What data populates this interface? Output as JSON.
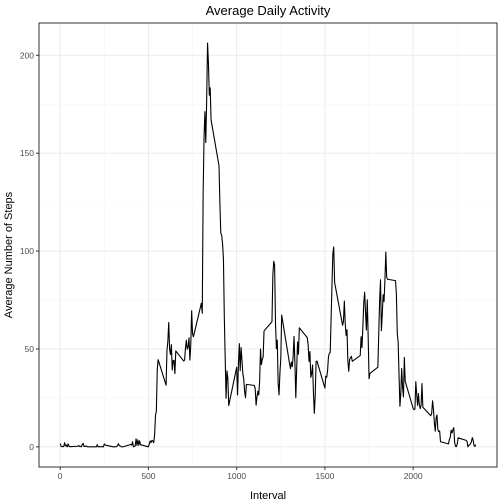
{
  "chart_data": {
    "type": "line",
    "title": "Average Daily Activity",
    "xlabel": "Interval",
    "ylabel": "Average Number of Steps",
    "xlim": [
      -120,
      2475
    ],
    "ylim": [
      -10.3,
      216.5
    ],
    "x_ticks": [
      0,
      500,
      1000,
      1500,
      2000
    ],
    "y_ticks": [
      0,
      50,
      100,
      150,
      200
    ],
    "grid": true,
    "legend": "none",
    "colors": {
      "line": "#000000",
      "grid_major": "#ebebeb",
      "grid_minor": "#f5f5f5",
      "panel_border": "#333333",
      "tick_text": "#4d4d4d"
    },
    "series": [
      {
        "values": [
          [
            0,
            1.7
          ],
          [
            5,
            0.3
          ],
          [
            10,
            0.1
          ],
          [
            15,
            0.2
          ],
          [
            20,
            0.1
          ],
          [
            25,
            2.1
          ],
          [
            30,
            0.5
          ],
          [
            35,
            0.9
          ],
          [
            40,
            0
          ],
          [
            45,
            1.5
          ],
          [
            50,
            0.3
          ],
          [
            55,
            0.1
          ],
          [
            100,
            0.3
          ],
          [
            105,
            0.7
          ],
          [
            110,
            0.2
          ],
          [
            115,
            0.3
          ],
          [
            120,
            0
          ],
          [
            125,
            1.1
          ],
          [
            130,
            1.8
          ],
          [
            135,
            0.2
          ],
          [
            140,
            0.2
          ],
          [
            145,
            0.4
          ],
          [
            150,
            0.3
          ],
          [
            155,
            0
          ],
          [
            200,
            0
          ],
          [
            205,
            0
          ],
          [
            210,
            1.1
          ],
          [
            215,
            0
          ],
          [
            220,
            0
          ],
          [
            225,
            0.1
          ],
          [
            230,
            0
          ],
          [
            235,
            0.2
          ],
          [
            240,
            0
          ],
          [
            245,
            0
          ],
          [
            250,
            1.5
          ],
          [
            255,
            0.9
          ],
          [
            300,
            0
          ],
          [
            305,
            0
          ],
          [
            310,
            0
          ],
          [
            315,
            0
          ],
          [
            320,
            0.2
          ],
          [
            325,
            0.6
          ],
          [
            330,
            1.6
          ],
          [
            335,
            0.6
          ],
          [
            340,
            0.5
          ],
          [
            345,
            0.1
          ],
          [
            350,
            0
          ],
          [
            355,
            0
          ],
          [
            400,
            1.2
          ],
          [
            405,
            0.9
          ],
          [
            410,
            2.6
          ],
          [
            415,
            0
          ],
          [
            420,
            0.3
          ],
          [
            425,
            0.4
          ],
          [
            430,
            4.1
          ],
          [
            435,
            0.7
          ],
          [
            440,
            3.5
          ],
          [
            445,
            0.8
          ],
          [
            450,
            3.1
          ],
          [
            455,
            1.1
          ],
          [
            500,
            0
          ],
          [
            505,
            1.6
          ],
          [
            510,
            3.0
          ],
          [
            515,
            2.2
          ],
          [
            520,
            3.3
          ],
          [
            525,
            3.0
          ],
          [
            530,
            2.1
          ],
          [
            535,
            6.1
          ],
          [
            540,
            16.0
          ],
          [
            545,
            18.3
          ],
          [
            550,
            39.5
          ],
          [
            555,
            44.5
          ],
          [
            600,
            31.5
          ],
          [
            605,
            49.3
          ],
          [
            610,
            53.8
          ],
          [
            615,
            63.5
          ],
          [
            620,
            50.0
          ],
          [
            625,
            47.1
          ],
          [
            630,
            52.2
          ],
          [
            635,
            39.3
          ],
          [
            640,
            44.0
          ],
          [
            645,
            44.2
          ],
          [
            650,
            37.4
          ],
          [
            655,
            49.0
          ],
          [
            700,
            43.8
          ],
          [
            705,
            44.4
          ],
          [
            710,
            50.5
          ],
          [
            715,
            54.5
          ],
          [
            720,
            49.9
          ],
          [
            725,
            51.0
          ],
          [
            730,
            55.7
          ],
          [
            735,
            44.3
          ],
          [
            740,
            52.3
          ],
          [
            745,
            69.5
          ],
          [
            750,
            57.8
          ],
          [
            755,
            56.2
          ],
          [
            800,
            73.4
          ],
          [
            805,
            68.2
          ],
          [
            810,
            129.4
          ],
          [
            815,
            157.5
          ],
          [
            820,
            171.2
          ],
          [
            825,
            155.4
          ],
          [
            830,
            177.3
          ],
          [
            835,
            206.2
          ],
          [
            840,
            195.9
          ],
          [
            845,
            179.6
          ],
          [
            850,
            183.4
          ],
          [
            855,
            167.0
          ],
          [
            900,
            143.5
          ],
          [
            905,
            124.0
          ],
          [
            910,
            109.1
          ],
          [
            915,
            108.1
          ],
          [
            920,
            103.7
          ],
          [
            925,
            95.97
          ],
          [
            930,
            66.2
          ],
          [
            935,
            45.2
          ],
          [
            940,
            24.8
          ],
          [
            945,
            38.8
          ],
          [
            950,
            34.98
          ],
          [
            955,
            21.1
          ],
          [
            1000,
            40.6
          ],
          [
            1005,
            26.5
          ],
          [
            1010,
            42.4
          ],
          [
            1015,
            52.7
          ],
          [
            1020,
            38.9
          ],
          [
            1025,
            50.8
          ],
          [
            1030,
            44.3
          ],
          [
            1035,
            37.4
          ],
          [
            1040,
            34.7
          ],
          [
            1045,
            28.3
          ],
          [
            1050,
            25.1
          ],
          [
            1055,
            31.9
          ],
          [
            1100,
            31.4
          ],
          [
            1105,
            29.7
          ],
          [
            1110,
            21.3
          ],
          [
            1115,
            25.5
          ],
          [
            1120,
            28.4
          ],
          [
            1125,
            26.5
          ],
          [
            1130,
            33.4
          ],
          [
            1135,
            49.98
          ],
          [
            1140,
            42.0
          ],
          [
            1145,
            44.6
          ],
          [
            1150,
            46.0
          ],
          [
            1155,
            59.2
          ],
          [
            1200,
            63.9
          ],
          [
            1205,
            87.7
          ],
          [
            1210,
            94.8
          ],
          [
            1215,
            92.8
          ],
          [
            1220,
            63.4
          ],
          [
            1225,
            50.2
          ],
          [
            1230,
            54.5
          ],
          [
            1235,
            32.4
          ],
          [
            1240,
            26.5
          ],
          [
            1245,
            37.7
          ],
          [
            1250,
            45.1
          ],
          [
            1255,
            67.3
          ],
          [
            1300,
            42.3
          ],
          [
            1305,
            39.9
          ],
          [
            1310,
            43.3
          ],
          [
            1315,
            40.98
          ],
          [
            1320,
            46.2
          ],
          [
            1325,
            56.4
          ],
          [
            1330,
            42.8
          ],
          [
            1335,
            25.1
          ],
          [
            1340,
            39.96
          ],
          [
            1345,
            53.5
          ],
          [
            1350,
            47.3
          ],
          [
            1355,
            60.8
          ],
          [
            1400,
            55.8
          ],
          [
            1405,
            51.96
          ],
          [
            1410,
            43.6
          ],
          [
            1415,
            48.7
          ],
          [
            1420,
            35.5
          ],
          [
            1425,
            37.5
          ],
          [
            1430,
            41.8
          ],
          [
            1435,
            27.5
          ],
          [
            1440,
            17.1
          ],
          [
            1445,
            26.1
          ],
          [
            1450,
            43.6
          ],
          [
            1455,
            43.8
          ],
          [
            1500,
            30.0
          ],
          [
            1505,
            36.1
          ],
          [
            1510,
            35.5
          ],
          [
            1515,
            38.8
          ],
          [
            1520,
            45.96
          ],
          [
            1525,
            47.8
          ],
          [
            1530,
            48.1
          ],
          [
            1535,
            65.3
          ],
          [
            1540,
            82.9
          ],
          [
            1545,
            98.7
          ],
          [
            1550,
            102.1
          ],
          [
            1555,
            83.96
          ],
          [
            1600,
            62.1
          ],
          [
            1605,
            64.1
          ],
          [
            1610,
            74.5
          ],
          [
            1615,
            63.2
          ],
          [
            1620,
            56.9
          ],
          [
            1625,
            59.8
          ],
          [
            1630,
            43.9
          ],
          [
            1635,
            38.6
          ],
          [
            1640,
            44.7
          ],
          [
            1645,
            45.5
          ],
          [
            1650,
            46.2
          ],
          [
            1655,
            43.7
          ],
          [
            1700,
            46.6
          ],
          [
            1705,
            56.3
          ],
          [
            1710,
            50.7
          ],
          [
            1715,
            61.2
          ],
          [
            1720,
            73.4
          ],
          [
            1725,
            79.0
          ],
          [
            1730,
            68.9
          ],
          [
            1735,
            59.7
          ],
          [
            1740,
            75.1
          ],
          [
            1745,
            56.5
          ],
          [
            1750,
            34.8
          ],
          [
            1755,
            37.5
          ],
          [
            1800,
            40.7
          ],
          [
            1805,
            58.0
          ],
          [
            1810,
            74.7
          ],
          [
            1815,
            85.3
          ],
          [
            1820,
            59.3
          ],
          [
            1825,
            67.8
          ],
          [
            1830,
            77.7
          ],
          [
            1835,
            74.2
          ],
          [
            1840,
            85.3
          ],
          [
            1845,
            99.5
          ],
          [
            1850,
            86.6
          ],
          [
            1855,
            85.6
          ],
          [
            1900,
            84.9
          ],
          [
            1905,
            77.8
          ],
          [
            1910,
            58.0
          ],
          [
            1915,
            53.4
          ],
          [
            1920,
            36.3
          ],
          [
            1925,
            20.7
          ],
          [
            1930,
            27.4
          ],
          [
            1935,
            40.0
          ],
          [
            1940,
            30.2
          ],
          [
            1945,
            25.5
          ],
          [
            1950,
            45.7
          ],
          [
            1955,
            33.5
          ],
          [
            2000,
            19.6
          ],
          [
            2005,
            19.0
          ],
          [
            2010,
            19.3
          ],
          [
            2015,
            33.3
          ],
          [
            2020,
            26.8
          ],
          [
            2025,
            21.2
          ],
          [
            2030,
            27.3
          ],
          [
            2035,
            21.3
          ],
          [
            2040,
            19.5
          ],
          [
            2045,
            21.3
          ],
          [
            2050,
            32.3
          ],
          [
            2055,
            20.2
          ],
          [
            2100,
            15.9
          ],
          [
            2105,
            17.2
          ],
          [
            2110,
            23.5
          ],
          [
            2115,
            19.2
          ],
          [
            2120,
            12.5
          ],
          [
            2125,
            8.0
          ],
          [
            2130,
            14.7
          ],
          [
            2135,
            16.3
          ],
          [
            2140,
            8.7
          ],
          [
            2145,
            7.8
          ],
          [
            2150,
            8.1
          ],
          [
            2155,
            2.6
          ],
          [
            2200,
            1.5
          ],
          [
            2205,
            3.7
          ],
          [
            2210,
            4.8
          ],
          [
            2215,
            8.5
          ],
          [
            2220,
            7.1
          ],
          [
            2225,
            8.7
          ],
          [
            2230,
            9.8
          ],
          [
            2235,
            2.2
          ],
          [
            2240,
            0.3
          ],
          [
            2245,
            0.1
          ],
          [
            2250,
            1.6
          ],
          [
            2255,
            4.6
          ],
          [
            2300,
            3.3
          ],
          [
            2305,
            2.8
          ],
          [
            2310,
            0
          ],
          [
            2315,
            0.8
          ],
          [
            2320,
            1.0
          ],
          [
            2325,
            1.6
          ],
          [
            2330,
            2.6
          ],
          [
            2335,
            4.7
          ],
          [
            2340,
            3.3
          ],
          [
            2345,
            0.6
          ],
          [
            2350,
            0.2
          ],
          [
            2355,
            1.1
          ]
        ]
      }
    ]
  }
}
